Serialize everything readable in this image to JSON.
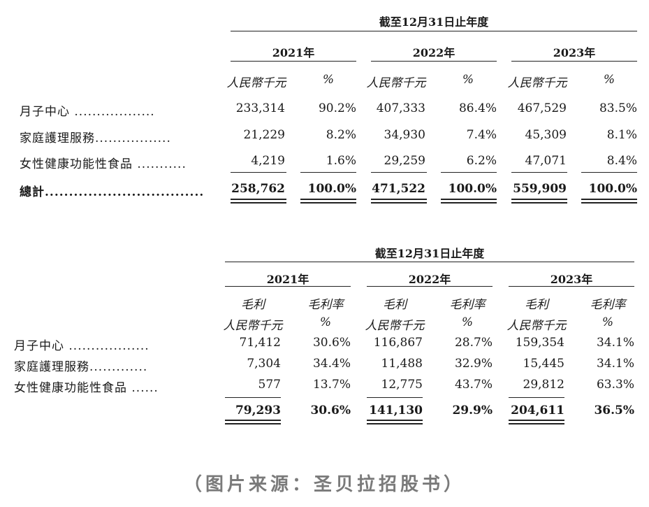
{
  "table1": {
    "period_header": "截至12月31日止年度",
    "years": [
      "2021年",
      "2022年",
      "2023年"
    ],
    "units": [
      "人民幣千元",
      "%",
      "人民幣千元",
      "%",
      "人民幣千元",
      "%"
    ],
    "rows": [
      {
        "label": "月子中心 ..................",
        "values": [
          "233,314",
          "90.2%",
          "407,333",
          "86.4%",
          "467,529",
          "83.5%"
        ]
      },
      {
        "label": "家庭護理服務.................",
        "values": [
          "21,229",
          "8.2%",
          "34,930",
          "7.4%",
          "45,309",
          "8.1%"
        ]
      },
      {
        "label": "女性健康功能性食品 ...........",
        "values": [
          "4,219",
          "1.6%",
          "29,259",
          "6.2%",
          "47,071",
          "8.4%"
        ]
      }
    ],
    "total": {
      "label": "總計.................................",
      "values": [
        "258,762",
        "100.0%",
        "471,522",
        "100.0%",
        "559,909",
        "100.0%"
      ]
    }
  },
  "table2": {
    "period_header": "截至12月31日止年度",
    "years": [
      "2021年",
      "2022年",
      "2023年"
    ],
    "col_titles": [
      "毛利",
      "毛利率",
      "毛利",
      "毛利率",
      "毛利",
      "毛利率"
    ],
    "units": [
      "人民幣千元",
      "%",
      "人民幣千元",
      "%",
      "人民幣千元",
      "%"
    ],
    "rows": [
      {
        "label": "月子中心 ..................",
        "values": [
          "71,412",
          "30.6%",
          "116,867",
          "28.7%",
          "159,354",
          "34.1%"
        ]
      },
      {
        "label": "家庭護理服務.............",
        "values": [
          "7,304",
          "34.4%",
          "11,488",
          "32.9%",
          "15,445",
          "34.1%"
        ]
      },
      {
        "label": "女性健康功能性食品 ......",
        "values": [
          "577",
          "13.7%",
          "12,775",
          "43.7%",
          "29,812",
          "63.3%"
        ]
      }
    ],
    "total": {
      "values": [
        "79,293",
        "30.6%",
        "141,130",
        "29.9%",
        "204,611",
        "36.5%"
      ]
    }
  },
  "source": "（图片来源：圣贝拉招股书）"
}
